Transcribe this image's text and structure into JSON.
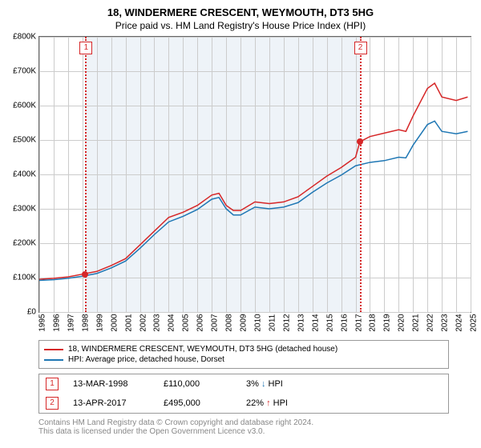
{
  "title": "18, WINDERMERE CRESCENT, WEYMOUTH, DT3 5HG",
  "subtitle": "Price paid vs. HM Land Registry's House Price Index (HPI)",
  "chart": {
    "type": "line",
    "background_color": "#ffffff",
    "shaded_color": "#eef3f8",
    "grid_color": "#cccccc",
    "border_color": "#666666",
    "y": {
      "min": 0,
      "max": 800000,
      "step": 100000,
      "labels": [
        "£0",
        "£100K",
        "£200K",
        "£300K",
        "£400K",
        "£500K",
        "£600K",
        "£700K",
        "£800K"
      ]
    },
    "x": {
      "min": 1995,
      "max": 2025,
      "step": 1,
      "labels": [
        "1995",
        "1996",
        "1997",
        "1998",
        "1999",
        "2000",
        "2001",
        "2002",
        "2003",
        "2004",
        "2005",
        "2006",
        "2007",
        "2008",
        "2009",
        "2010",
        "2011",
        "2012",
        "2013",
        "2014",
        "2015",
        "2016",
        "2017",
        "2018",
        "2019",
        "2020",
        "2021",
        "2022",
        "2023",
        "2024",
        "2025"
      ]
    },
    "series": [
      {
        "name": "18, WINDERMERE CRESCENT, WEYMOUTH, DT3 5HG (detached house)",
        "color": "#d62728",
        "line_width": 1.5,
        "points": [
          [
            1995,
            95000
          ],
          [
            1996,
            98000
          ],
          [
            1997,
            102000
          ],
          [
            1998,
            110000
          ],
          [
            1999,
            118000
          ],
          [
            2000,
            135000
          ],
          [
            2001,
            155000
          ],
          [
            2002,
            195000
          ],
          [
            2003,
            235000
          ],
          [
            2004,
            275000
          ],
          [
            2005,
            290000
          ],
          [
            2006,
            310000
          ],
          [
            2007,
            340000
          ],
          [
            2007.5,
            345000
          ],
          [
            2008,
            310000
          ],
          [
            2008.5,
            295000
          ],
          [
            2009,
            295000
          ],
          [
            2010,
            320000
          ],
          [
            2011,
            315000
          ],
          [
            2012,
            320000
          ],
          [
            2013,
            335000
          ],
          [
            2014,
            365000
          ],
          [
            2015,
            395000
          ],
          [
            2016,
            420000
          ],
          [
            2017,
            450000
          ],
          [
            2017.3,
            495000
          ],
          [
            2018,
            510000
          ],
          [
            2019,
            520000
          ],
          [
            2020,
            530000
          ],
          [
            2020.5,
            525000
          ],
          [
            2021,
            570000
          ],
          [
            2022,
            650000
          ],
          [
            2022.5,
            665000
          ],
          [
            2023,
            625000
          ],
          [
            2024,
            615000
          ],
          [
            2024.8,
            625000
          ]
        ]
      },
      {
        "name": "HPI: Average price, detached house, Dorset",
        "color": "#1f77b4",
        "line_width": 1.5,
        "points": [
          [
            1995,
            92000
          ],
          [
            1996,
            94000
          ],
          [
            1997,
            98000
          ],
          [
            1998,
            104000
          ],
          [
            1999,
            112000
          ],
          [
            2000,
            128000
          ],
          [
            2001,
            148000
          ],
          [
            2002,
            185000
          ],
          [
            2003,
            225000
          ],
          [
            2004,
            262000
          ],
          [
            2005,
            278000
          ],
          [
            2006,
            298000
          ],
          [
            2007,
            328000
          ],
          [
            2007.5,
            333000
          ],
          [
            2008,
            300000
          ],
          [
            2008.5,
            282000
          ],
          [
            2009,
            282000
          ],
          [
            2010,
            305000
          ],
          [
            2011,
            300000
          ],
          [
            2012,
            305000
          ],
          [
            2013,
            318000
          ],
          [
            2014,
            348000
          ],
          [
            2015,
            375000
          ],
          [
            2016,
            398000
          ],
          [
            2017,
            425000
          ],
          [
            2018,
            435000
          ],
          [
            2019,
            440000
          ],
          [
            2020,
            450000
          ],
          [
            2020.5,
            448000
          ],
          [
            2021,
            485000
          ],
          [
            2022,
            545000
          ],
          [
            2022.5,
            555000
          ],
          [
            2023,
            525000
          ],
          [
            2024,
            518000
          ],
          [
            2024.8,
            525000
          ]
        ]
      }
    ],
    "sale_markers": [
      {
        "n": "1",
        "year": 1998.2,
        "price": 110000,
        "color": "#d62728"
      },
      {
        "n": "2",
        "year": 2017.28,
        "price": 495000,
        "color": "#d62728"
      }
    ],
    "shaded_span": [
      1998.2,
      2017.28
    ]
  },
  "legend": {
    "items": [
      {
        "color": "#d62728",
        "label": "18, WINDERMERE CRESCENT, WEYMOUTH, DT3 5HG (detached house)"
      },
      {
        "color": "#1f77b4",
        "label": "HPI: Average price, detached house, Dorset"
      }
    ]
  },
  "sales": [
    {
      "n": "1",
      "date": "13-MAR-1998",
      "price": "£110,000",
      "pct": "3%",
      "dir": "↓",
      "dir_color": "#1f77b4",
      "suffix": "HPI",
      "marker_color": "#d62728"
    },
    {
      "n": "2",
      "date": "13-APR-2017",
      "price": "£495,000",
      "pct": "22%",
      "dir": "↑",
      "dir_color": "#d62728",
      "suffix": "HPI",
      "marker_color": "#d62728"
    }
  ],
  "footer": {
    "line1": "Contains HM Land Registry data © Crown copyright and database right 2024.",
    "line2": "This data is licensed under the Open Government Licence v3.0.",
    "color": "#888888"
  }
}
